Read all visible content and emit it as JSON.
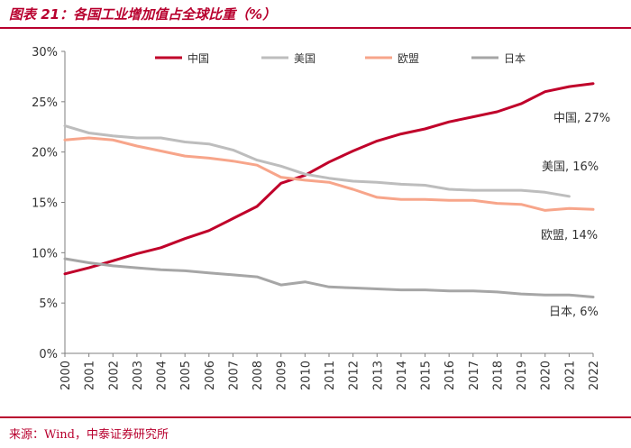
{
  "header": {
    "title": "图表 21：各国工业增加值占全球比重（%）"
  },
  "footer": {
    "source": "来源：Wind，中泰证券研究所"
  },
  "chart_data": {
    "type": "line",
    "title": "图表 21：各国工业增加值占全球比重（%）",
    "xlabel": "",
    "ylabel": "",
    "ylim": [
      0,
      30
    ],
    "yticks": [
      "0%",
      "5%",
      "10%",
      "15%",
      "20%",
      "25%",
      "30%"
    ],
    "x": [
      "2000",
      "2001",
      "2002",
      "2003",
      "2004",
      "2005",
      "2006",
      "2007",
      "2008",
      "2009",
      "2010",
      "2011",
      "2012",
      "2013",
      "2014",
      "2015",
      "2016",
      "2017",
      "2018",
      "2019",
      "2020",
      "2021",
      "2022"
    ],
    "grid": false,
    "legend": "top",
    "series": [
      {
        "name": "中国",
        "color": "#c0002a",
        "end_label": "中国, 27%",
        "values": [
          7.9,
          8.5,
          9.2,
          9.9,
          10.5,
          11.4,
          12.2,
          13.4,
          14.6,
          16.9,
          17.7,
          19.0,
          20.1,
          21.1,
          21.8,
          22.3,
          23.0,
          23.5,
          24.0,
          24.8,
          26.0,
          26.5,
          26.8
        ]
      },
      {
        "name": "美国",
        "color": "#bdbdbd",
        "end_label": "美国, 16%",
        "values": [
          22.6,
          21.9,
          21.6,
          21.4,
          21.4,
          21.0,
          20.8,
          20.2,
          19.2,
          18.6,
          17.8,
          17.4,
          17.1,
          17.0,
          16.8,
          16.7,
          16.3,
          16.2,
          16.2,
          16.2,
          16.0,
          15.6,
          null
        ]
      },
      {
        "name": "欧盟",
        "color": "#f7a58a",
        "end_label": "欧盟, 14%",
        "values": [
          21.2,
          21.4,
          21.2,
          20.6,
          20.1,
          19.6,
          19.4,
          19.1,
          18.7,
          17.5,
          17.2,
          17.0,
          16.3,
          15.5,
          15.3,
          15.3,
          15.2,
          15.2,
          14.9,
          14.8,
          14.2,
          14.4,
          14.3
        ]
      },
      {
        "name": "日本",
        "color": "#a6a6a6",
        "end_label": "日本, 6%",
        "values": [
          9.4,
          9.0,
          8.7,
          8.5,
          8.3,
          8.2,
          8.0,
          7.8,
          7.6,
          6.8,
          7.1,
          6.6,
          6.5,
          6.4,
          6.3,
          6.3,
          6.2,
          6.2,
          6.1,
          5.9,
          5.8,
          5.8,
          5.6
        ]
      }
    ]
  }
}
